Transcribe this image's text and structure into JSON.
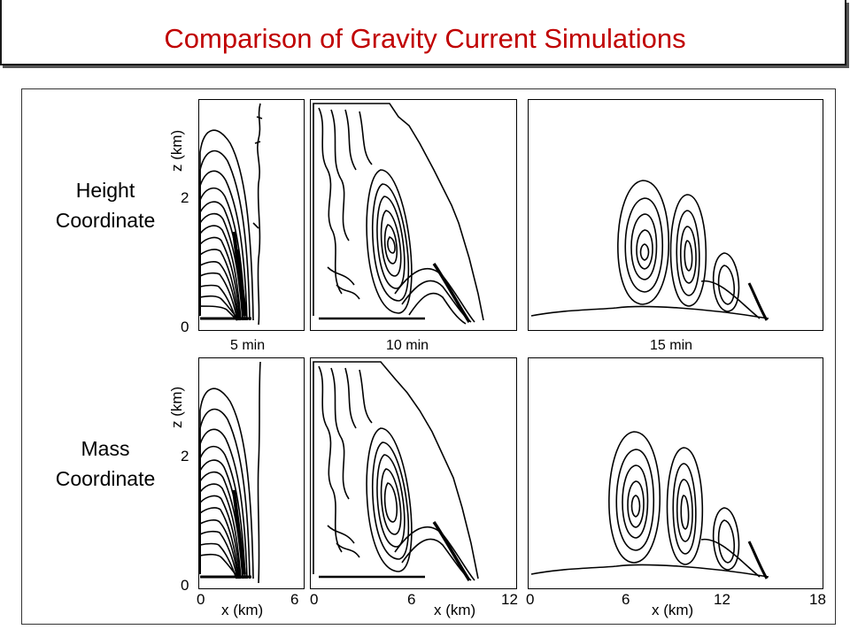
{
  "title": "Comparison of Gravity Current Simulations",
  "rows": [
    {
      "label_line1": "Height",
      "label_line2": "Coordinate"
    },
    {
      "label_line1": "Mass",
      "label_line2": "Coordinate"
    }
  ],
  "times": [
    "5 min",
    "10 min",
    "15 min"
  ],
  "axes": {
    "z_label": "z (km)",
    "x_label": "x (km)",
    "z_ticks": [
      "0",
      "2"
    ],
    "x_ticks": [
      "0",
      "6",
      "6",
      "12",
      "6",
      "12",
      "18"
    ],
    "x_ticks_start": [
      "0",
      "0"
    ]
  },
  "colors": {
    "title": "#c00000",
    "lines": "#000000"
  }
}
